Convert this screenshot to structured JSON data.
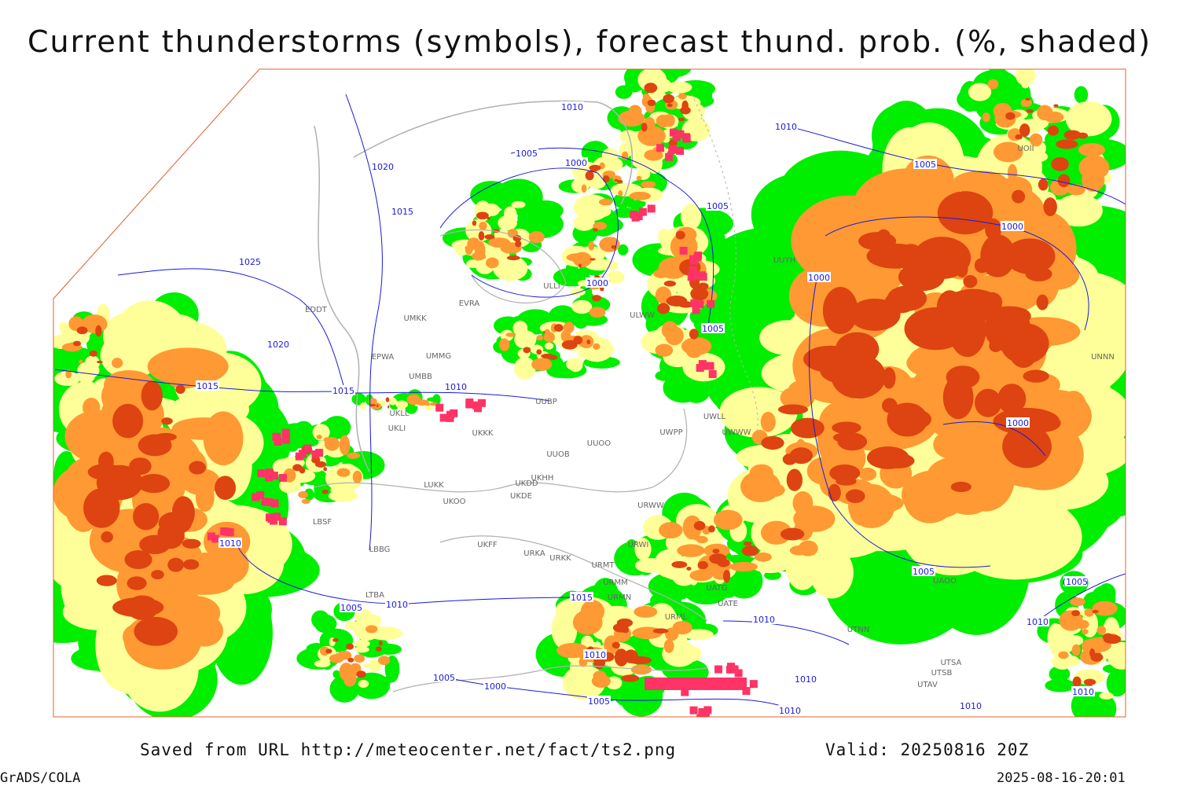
{
  "title": "Current thunderstorms (symbols), forecast thund. prob. (%, shaded)",
  "footer": {
    "source": "Saved from URL http://meteocenter.net/fact/ts2.png",
    "valid": "Valid: 20250816 20Z",
    "software": "GrADS/COLA",
    "timestamp": "2025-08-16-20:01"
  },
  "isobar_labels": [
    "1010",
    "1010",
    "1005",
    "1000",
    "1020",
    "1005",
    "1005",
    "1015",
    "1000",
    "1025",
    "1000",
    "1000",
    "1005",
    "1020",
    "1015",
    "1015",
    "1010",
    "1000",
    "1010",
    "1015",
    "1005",
    "1005",
    "1010",
    "1010",
    "1010",
    "1005",
    "1000",
    "1005",
    "1010",
    "1010",
    "1010",
    "1010",
    "1010",
    "(1005"
  ],
  "stations": [
    "EDDT",
    "UMKK",
    "EVRA",
    "ULLI",
    "ULWW",
    "EPWA",
    "UMMG",
    "UMBB",
    "UUBP",
    "UKLL",
    "UKLI",
    "UKKK",
    "UUOB",
    "UUOO",
    "UWPP",
    "UWWW",
    "UWLL",
    "LUKK",
    "UKOO",
    "UKDD",
    "UKDE",
    "UKHH",
    "UKFF",
    "URKA",
    "URKK",
    "URMT",
    "URMM",
    "URMN",
    "URML",
    "UATE",
    "UATG",
    "LBSF",
    "LBBG",
    "LTBA",
    "UOII",
    "URWW",
    "URWI",
    "UTNN",
    "UAOO",
    "UTSA",
    "UTSB",
    "UTAV",
    "UUYH",
    "UNNN"
  ]
}
